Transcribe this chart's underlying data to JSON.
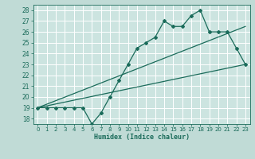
{
  "xlabel": "Humidex (Indice chaleur)",
  "xlim": [
    -0.5,
    23.5
  ],
  "ylim": [
    17.5,
    28.5
  ],
  "yticks": [
    18,
    19,
    20,
    21,
    22,
    23,
    24,
    25,
    26,
    27,
    28
  ],
  "xticks": [
    0,
    1,
    2,
    3,
    4,
    5,
    6,
    7,
    8,
    9,
    10,
    11,
    12,
    13,
    14,
    15,
    16,
    17,
    18,
    19,
    20,
    21,
    22,
    23
  ],
  "bg_color": "#c0dbd6",
  "plot_bg_color": "#cce4e0",
  "grid_color": "#ffffff",
  "line_color": "#1a6b5a",
  "main_line_x": [
    0,
    1,
    2,
    3,
    4,
    5,
    6,
    7,
    8,
    9,
    10,
    11,
    12,
    13,
    14,
    15,
    16,
    17,
    18,
    19,
    20,
    21,
    22,
    23
  ],
  "main_line_y": [
    19,
    19,
    19,
    19,
    19,
    19,
    17.5,
    18.5,
    20,
    21.5,
    23,
    24.5,
    25,
    25.5,
    27,
    26.5,
    26.5,
    27.5,
    28,
    26,
    26,
    26,
    24.5,
    23
  ],
  "line2_x": [
    0,
    23
  ],
  "line2_y": [
    19,
    23
  ],
  "line3_x": [
    0,
    23
  ],
  "line3_y": [
    19.0,
    26.5
  ],
  "marker_indices": [
    0,
    1,
    2,
    3,
    4,
    5,
    6,
    7,
    8,
    9,
    10,
    11,
    12,
    13,
    14,
    15,
    16,
    17,
    18,
    19,
    20,
    21,
    22,
    23
  ]
}
